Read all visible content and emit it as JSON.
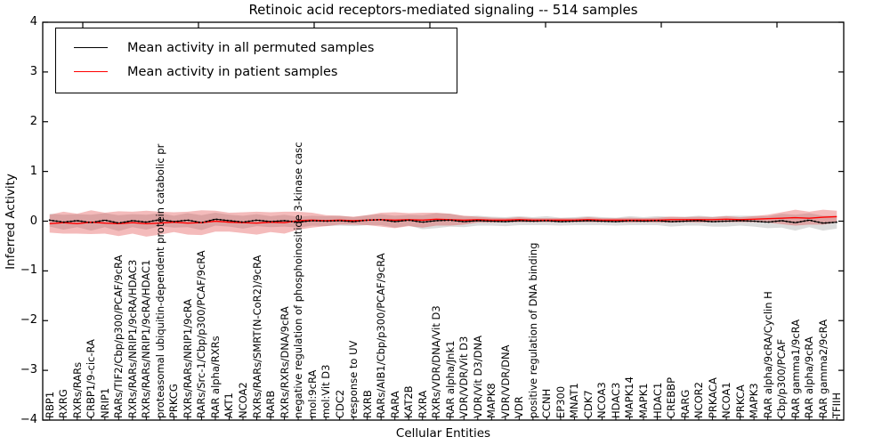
{
  "title": "Retinoic acid receptors-mediated signaling -- 514 samples",
  "axes": {
    "ylabel": "Inferred Activity",
    "xlabel": "Cellular Entities",
    "ytick_labels": [
      "4",
      "3",
      "2",
      "1",
      "0",
      "−1",
      "−2",
      "−3",
      "−4"
    ]
  },
  "legend": {
    "items": [
      {
        "label": "Mean activity in all permuted samples",
        "color": "#000000"
      },
      {
        "label": "Mean activity in patient samples",
        "color": "#ff0000"
      }
    ]
  },
  "chart_data": {
    "type": "line",
    "title": "Retinoic acid receptors-mediated signaling -- 514 samples",
    "xlabel": "Cellular Entities",
    "ylabel": "Inferred Activity",
    "ylim": [
      -4,
      4
    ],
    "yticks": [
      4,
      3,
      2,
      1,
      0,
      -1,
      -2,
      -3,
      -4
    ],
    "grid": false,
    "legend_position": "upper left",
    "band_colors": {
      "permuted": "rgba(130,130,130,0.28)",
      "patient": "rgba(222,45,45,0.32)"
    },
    "categories": [
      "RBP1",
      "RXRG",
      "RXRs/RARs",
      "CRBP1/9-cic-RA",
      "NRIP1",
      "RARs/TIF2/Cbp/p300/PCAF/9cRA",
      "RXRs/RARs/NRIP1/9cRA/HDAC3",
      "RXRs/RARs/NRIP1/9cRA/HDAC1",
      "proteasomal ubiquitin-dependent protein catabolic pr",
      "PRKCG",
      "RXRs/RARs/NRIP1/9cRA",
      "RARs/Src-1/Cbp/p300/PCAF/9cRA",
      "RAR alpha/RXRs",
      "AKT1",
      "NCOA2",
      "RXRs/RARs/SMRT(N-CoR2)/9cRA",
      "RARB",
      "RXRs/RXRs/DNA/9cRA",
      "negative regulation of phosphoinositide 3-kinase casc",
      "mol:9cRA",
      "mol:Vit D3",
      "CDC2",
      "response to UV",
      "RXRB",
      "RARs/AIB1/Cbp/p300/PCAF/9cRA",
      "RARA",
      "KAT2B",
      "RXRA",
      "RXRs/VDR/DNA/Vit D3",
      "RAR alpha/Jnk1",
      "VDR/VDR/Vit D3",
      "VDR/Vit D3/DNA",
      "MAPK8",
      "VDR/VDR/DNA",
      "VDR",
      "positive regulation of DNA binding",
      "CCNH",
      "EP300",
      "MNAT1",
      "CDK7",
      "NCOA3",
      "HDAC3",
      "MAPK14",
      "MAPK1",
      "HDAC1",
      "CREBBP",
      "RARG",
      "NCOR2",
      "PRKACA",
      "NCOA1",
      "PRKCA",
      "MAPK3",
      "RAR alpha/9cRA/Cyclin H",
      "Cbp/p300/PCAF",
      "RAR gamma1/9cRA",
      "RAR alpha/9cRA",
      "RAR gamma2/9cRA",
      "TFIIH"
    ],
    "series": [
      {
        "name": "Mean activity in all permuted samples",
        "color": "#000000",
        "values": [
          0.02,
          -0.02,
          0.01,
          -0.03,
          0.02,
          -0.04,
          0.01,
          -0.02,
          0.03,
          -0.01,
          0.02,
          -0.03,
          0.04,
          0.01,
          -0.02,
          0.02,
          -0.01,
          0.01,
          -0.02,
          0.01,
          0.0,
          0.01,
          -0.01,
          0.02,
          0.03,
          -0.01,
          0.02,
          -0.02,
          0.01,
          0.02,
          -0.01,
          0.01,
          0.0,
          -0.01,
          0.01,
          0.0,
          0.01,
          -0.01,
          0.0,
          0.01,
          0.0,
          -0.01,
          0.01,
          0.0,
          0.01,
          -0.01,
          0.0,
          0.01,
          -0.01,
          0.0,
          0.01,
          0.0,
          -0.02,
          0.01,
          -0.03,
          0.02,
          -0.04,
          -0.02
        ],
        "band_halfwidth": [
          0.13,
          0.15,
          0.13,
          0.16,
          0.14,
          0.16,
          0.13,
          0.15,
          0.13,
          0.12,
          0.14,
          0.15,
          0.13,
          0.12,
          0.13,
          0.12,
          0.11,
          0.12,
          0.11,
          0.1,
          0.1,
          0.1,
          0.09,
          0.1,
          0.11,
          0.12,
          0.11,
          0.14,
          0.15,
          0.13,
          0.11,
          0.1,
          0.09,
          0.09,
          0.09,
          0.08,
          0.09,
          0.08,
          0.08,
          0.09,
          0.08,
          0.08,
          0.09,
          0.08,
          0.09,
          0.1,
          0.09,
          0.1,
          0.1,
          0.11,
          0.1,
          0.11,
          0.12,
          0.14,
          0.16,
          0.14,
          0.15,
          0.13
        ]
      },
      {
        "name": "Mean activity in patient samples",
        "color": "#ff0000",
        "values": [
          -0.05,
          -0.03,
          -0.05,
          -0.02,
          -0.04,
          -0.05,
          -0.03,
          -0.05,
          -0.04,
          -0.02,
          -0.04,
          -0.03,
          0.0,
          -0.02,
          -0.03,
          -0.04,
          -0.02,
          -0.03,
          0.01,
          0.02,
          0.01,
          0.02,
          0.01,
          0.02,
          0.03,
          0.02,
          0.03,
          0.02,
          0.04,
          0.03,
          0.02,
          0.03,
          0.02,
          0.02,
          0.03,
          0.02,
          0.02,
          0.02,
          0.02,
          0.03,
          0.02,
          0.02,
          0.02,
          0.02,
          0.02,
          0.03,
          0.03,
          0.03,
          0.03,
          0.04,
          0.03,
          0.04,
          0.05,
          0.06,
          0.07,
          0.06,
          0.08,
          0.09
        ],
        "band_halfwidth": [
          0.18,
          0.22,
          0.2,
          0.24,
          0.21,
          0.25,
          0.22,
          0.26,
          0.23,
          0.2,
          0.23,
          0.25,
          0.21,
          0.19,
          0.21,
          0.23,
          0.2,
          0.22,
          0.18,
          0.15,
          0.11,
          0.09,
          0.08,
          0.1,
          0.14,
          0.16,
          0.13,
          0.15,
          0.13,
          0.12,
          0.09,
          0.06,
          0.05,
          0.04,
          0.05,
          0.04,
          0.04,
          0.04,
          0.04,
          0.05,
          0.04,
          0.04,
          0.05,
          0.04,
          0.05,
          0.06,
          0.05,
          0.06,
          0.05,
          0.06,
          0.05,
          0.06,
          0.08,
          0.12,
          0.16,
          0.13,
          0.15,
          0.12
        ]
      }
    ]
  }
}
